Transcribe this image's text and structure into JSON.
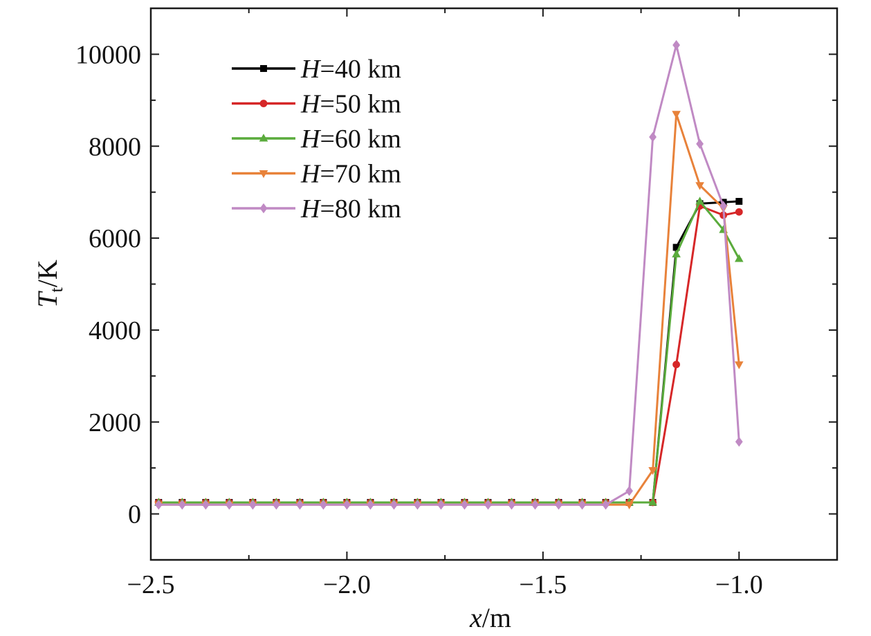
{
  "chart_data": {
    "type": "line",
    "xlabel": {
      "var": "x",
      "unit": "/m"
    },
    "ylabel": {
      "var": "T",
      "sub": "t",
      "unit": "/K"
    },
    "xlim": [
      -2.5,
      -0.75
    ],
    "ylim": [
      -1000,
      11000
    ],
    "xticks": [
      -2.5,
      -2.0,
      -1.5,
      -1.0
    ],
    "xtick_labels": [
      "−2.5",
      "−2.0",
      "−1.5",
      "−1.0"
    ],
    "xticks_minor": [
      -2.25,
      -1.75,
      -1.25,
      -0.75
    ],
    "yticks": [
      0,
      2000,
      4000,
      6000,
      8000,
      10000
    ],
    "ytick_labels": [
      "0",
      "2000",
      "4000",
      "6000",
      "8000",
      "10000"
    ],
    "yticks_minor": [
      -1000,
      1000,
      3000,
      5000,
      7000,
      9000,
      11000
    ],
    "grid": false,
    "legend_position": "top-left",
    "x": [
      -2.48,
      -2.42,
      -2.36,
      -2.3,
      -2.24,
      -2.18,
      -2.12,
      -2.06,
      -2.0,
      -1.94,
      -1.88,
      -1.82,
      -1.76,
      -1.7,
      -1.64,
      -1.58,
      -1.52,
      -1.46,
      -1.4,
      -1.34,
      -1.28,
      -1.22,
      -1.16,
      -1.1,
      -1.04,
      -1.0
    ],
    "series": [
      {
        "name_var": "H",
        "name_value": "=40 km",
        "color": "#000000",
        "marker": "square",
        "values": [
          250,
          250,
          250,
          250,
          250,
          250,
          250,
          250,
          250,
          250,
          250,
          250,
          250,
          250,
          250,
          250,
          250,
          250,
          250,
          250,
          250,
          250,
          5800,
          6750,
          6780,
          6800
        ]
      },
      {
        "name_var": "H",
        "name_value": "=50 km",
        "color": "#d62728",
        "marker": "circle",
        "values": [
          250,
          250,
          250,
          250,
          250,
          250,
          250,
          250,
          250,
          250,
          250,
          250,
          250,
          250,
          250,
          250,
          250,
          250,
          250,
          250,
          250,
          250,
          3250,
          6700,
          6500,
          6570
        ]
      },
      {
        "name_var": "H",
        "name_value": "=60 km",
        "color": "#5aab3c",
        "marker": "triangle-up",
        "values": [
          250,
          250,
          250,
          250,
          250,
          250,
          250,
          250,
          250,
          250,
          250,
          250,
          250,
          250,
          250,
          250,
          250,
          250,
          250,
          250,
          250,
          250,
          5650,
          6800,
          6180,
          5550
        ]
      },
      {
        "name_var": "H",
        "name_value": "=70 km",
        "color": "#e8823a",
        "marker": "triangle-down",
        "values": [
          200,
          200,
          200,
          200,
          200,
          200,
          200,
          200,
          200,
          200,
          200,
          200,
          200,
          200,
          200,
          200,
          200,
          200,
          200,
          200,
          200,
          950,
          8700,
          7150,
          6650,
          3250
        ]
      },
      {
        "name_var": "H",
        "name_value": "=80 km",
        "color": "#c08ac4",
        "marker": "diamond",
        "values": [
          200,
          200,
          200,
          200,
          200,
          200,
          200,
          200,
          200,
          200,
          200,
          200,
          200,
          200,
          200,
          200,
          200,
          200,
          200,
          200,
          500,
          8200,
          10200,
          8050,
          6700,
          1570
        ]
      }
    ]
  }
}
